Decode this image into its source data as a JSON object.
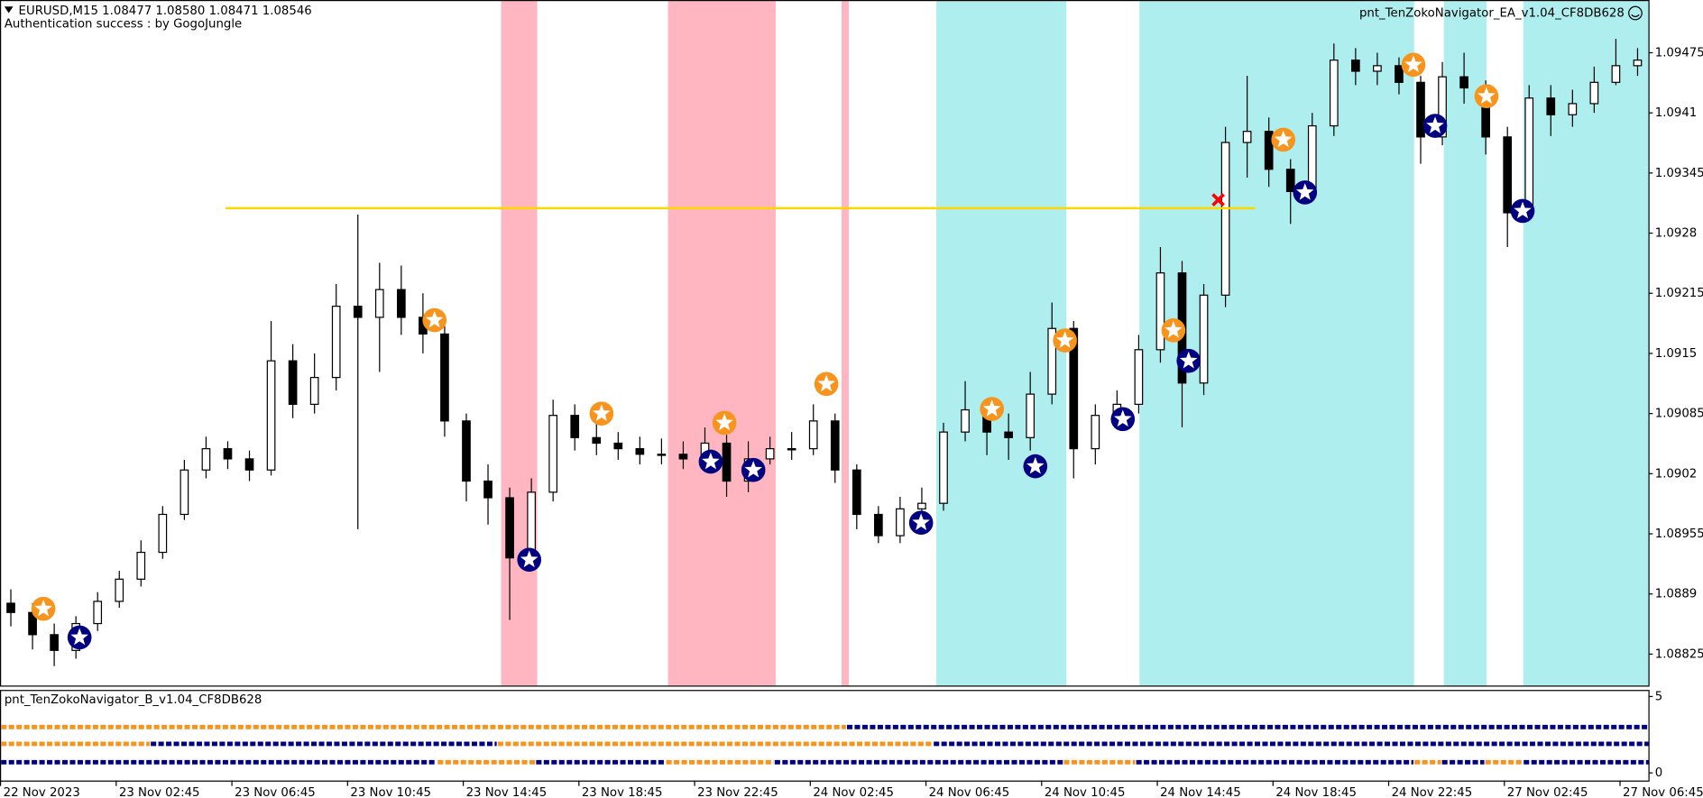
{
  "chart_data": [
    {
      "type": "candlestick",
      "title": "EURUSD,M15  1.08477 1.08580 1.08471 1.08546",
      "subtitle": "Authentication success : by GogoJungle",
      "annotation": "pnt_TenZokoNavigator_EA_v1.04_CF8DB628",
      "x": [
        1.5,
        4.5,
        7.5,
        10.5,
        13.5,
        16.5,
        19.5,
        22.5,
        25.5,
        28.5,
        31.5,
        34.5,
        37.5,
        40.5,
        43.5,
        46.5,
        49.5,
        52.5,
        55.5,
        58.5,
        61.5,
        64.5,
        67.5,
        70.5,
        73.5,
        76.5,
        79.5,
        82.5,
        85.5,
        88.5,
        91.5,
        94.5,
        97.5,
        100.5,
        103.5,
        106.5,
        109.5,
        112.5,
        115.5,
        118.5,
        121.5,
        124.5,
        127.5,
        130.5,
        133.5,
        136.5,
        139.5,
        142.5,
        145.5,
        148.5,
        151.5,
        154.5,
        157.5,
        160.5,
        163.5,
        166.5,
        169.5,
        172.5,
        175.5,
        178.5,
        181.5,
        184.5,
        187.5,
        190.5,
        193.5,
        196.5,
        199.5,
        202.5,
        205.5,
        208.5,
        211.5,
        214.5,
        217.5,
        220.5,
        223.5,
        226.5
      ],
      "open": [
        1.0888,
        1.0887,
        1.08846,
        1.08829,
        1.08858,
        1.08882,
        1.08906,
        1.08935,
        1.08976,
        1.09024,
        1.09047,
        1.09036,
        1.09024,
        1.09142,
        1.09095,
        1.09124,
        1.09201,
        1.09189,
        1.09219,
        1.09189,
        1.09171,
        1.09077,
        1.09012,
        1.08994,
        1.08929,
        1.09,
        1.09083,
        1.09059,
        1.09053,
        1.09047,
        1.09041,
        1.09041,
        1.09036,
        1.09053,
        1.09012,
        1.09036,
        1.09047,
        1.09047,
        1.09077,
        1.09024,
        1.08976,
        1.08953,
        1.08982,
        1.08988,
        1.09065,
        1.09089,
        1.09065,
        1.09059,
        1.09106,
        1.09177,
        1.09047,
        1.09083,
        1.09095,
        1.09154,
        1.09237,
        1.09118,
        1.09213,
        1.09378,
        1.0939,
        1.09349,
        1.09325,
        1.09396,
        1.09467,
        1.09455,
        1.09461,
        1.09443,
        1.09384,
        1.09449,
        1.09437,
        1.09384,
        1.09302,
        1.09426,
        1.09408,
        1.0942,
        1.09443,
        1.09461
      ],
      "high": [
        1.08895,
        1.0888,
        1.08858,
        1.08866,
        1.08892,
        1.08915,
        1.08948,
        1.08985,
        1.09035,
        1.0906,
        1.09055,
        1.09045,
        1.09185,
        1.0916,
        1.0915,
        1.09225,
        1.093,
        1.09248,
        1.09245,
        1.09215,
        1.0918,
        1.09085,
        1.0903,
        1.09005,
        1.09015,
        1.091,
        1.09095,
        1.09075,
        1.09065,
        1.0906,
        1.09058,
        1.09055,
        1.0907,
        1.09062,
        1.09055,
        1.0906,
        1.09065,
        1.09095,
        1.09085,
        1.0903,
        1.08985,
        1.08995,
        1.09005,
        1.09075,
        1.0912,
        1.091,
        1.09085,
        1.0913,
        1.09205,
        1.09185,
        1.09095,
        1.0911,
        1.0917,
        1.09265,
        1.0925,
        1.09225,
        1.09395,
        1.0945,
        1.09405,
        1.0936,
        1.0941,
        1.09485,
        1.0948,
        1.09475,
        1.0947,
        1.0945,
        1.09465,
        1.09475,
        1.09445,
        1.09395,
        1.0944,
        1.0944,
        1.09435,
        1.0946,
        1.0949,
        1.0948
      ],
      "low": [
        1.08855,
        1.0883,
        1.08812,
        1.0882,
        1.0885,
        1.08875,
        1.08898,
        1.08928,
        1.0897,
        1.09015,
        1.09025,
        1.09012,
        1.09018,
        1.0908,
        1.09085,
        1.0911,
        1.0896,
        1.0913,
        1.0917,
        1.0915,
        1.0906,
        1.0899,
        1.08965,
        1.08862,
        1.08915,
        1.0899,
        1.09045,
        1.0904,
        1.09035,
        1.0903,
        1.0903,
        1.09025,
        1.09028,
        1.08995,
        1.09,
        1.0903,
        1.09035,
        1.0904,
        1.0901,
        1.0896,
        1.08945,
        1.08945,
        1.0897,
        1.0898,
        1.09055,
        1.0904,
        1.09035,
        1.09045,
        1.09095,
        1.09015,
        1.0903,
        1.0907,
        1.09085,
        1.0914,
        1.0907,
        1.09105,
        1.092,
        1.0934,
        1.0933,
        1.0929,
        1.09315,
        1.09385,
        1.0944,
        1.0944,
        1.0943,
        1.09355,
        1.09375,
        1.0942,
        1.09365,
        1.09265,
        1.09295,
        1.09385,
        1.09395,
        1.0941,
        1.0944,
        1.0945
      ],
      "close": [
        1.0887,
        1.08846,
        1.08829,
        1.08858,
        1.08882,
        1.08906,
        1.08935,
        1.08976,
        1.09024,
        1.09047,
        1.09036,
        1.09024,
        1.09142,
        1.09095,
        1.09124,
        1.09201,
        1.09189,
        1.09219,
        1.09189,
        1.09171,
        1.09077,
        1.09012,
        1.08994,
        1.08929,
        1.09,
        1.09083,
        1.09059,
        1.09053,
        1.09047,
        1.09041,
        1.09041,
        1.09036,
        1.09053,
        1.09012,
        1.09036,
        1.09047,
        1.09047,
        1.09077,
        1.09024,
        1.08976,
        1.08953,
        1.08982,
        1.08988,
        1.09065,
        1.09089,
        1.09065,
        1.09059,
        1.09106,
        1.09177,
        1.09047,
        1.09083,
        1.09095,
        1.09154,
        1.09237,
        1.09118,
        1.09213,
        1.09378,
        1.0939,
        1.09349,
        1.09325,
        1.09396,
        1.09467,
        1.09455,
        1.09461,
        1.09443,
        1.09384,
        1.09449,
        1.09437,
        1.09384,
        1.09302,
        1.09426,
        1.09408,
        1.0942,
        1.09443,
        1.09461,
        1.09467
      ],
      "xlim": [
        0,
        228
      ],
      "ylim": [
        1.08791,
        1.09532
      ],
      "yticks": [
        1.08825,
        1.0889,
        1.08955,
        1.0902,
        1.09085,
        1.0915,
        1.09215,
        1.0928,
        1.09345,
        1.0941,
        1.09475
      ],
      "xticks": [
        {
          "value": 0,
          "label": "22 Nov 2023"
        },
        {
          "value": 16,
          "label": "23 Nov 02:45"
        },
        {
          "value": 32,
          "label": "23 Nov 06:45"
        },
        {
          "value": 48,
          "label": "23 Nov 10:45"
        },
        {
          "value": 64,
          "label": "23 Nov 14:45"
        },
        {
          "value": 80,
          "label": "23 Nov 18:45"
        },
        {
          "value": 96,
          "label": "23 Nov 22:45"
        },
        {
          "value": 112,
          "label": "24 Nov 02:45"
        },
        {
          "value": 128,
          "label": "24 Nov 06:45"
        },
        {
          "value": 144,
          "label": "24 Nov 10:45"
        },
        {
          "value": 160,
          "label": "24 Nov 14:45"
        },
        {
          "value": 176,
          "label": "24 Nov 18:45"
        },
        {
          "value": 192,
          "label": "24 Nov 22:45"
        },
        {
          "value": 208,
          "label": "27 Nov 02:45"
        },
        {
          "value": 224,
          "label": "27 Nov 06:45"
        }
      ],
      "zones": [
        {
          "start": 69.3,
          "end": 74.3,
          "color": "#ffb6c1"
        },
        {
          "start": 92.4,
          "end": 107.3,
          "color": "#ffb6c1"
        },
        {
          "start": 116.4,
          "end": 117.4,
          "color": "#ffb6c1"
        },
        {
          "start": 129.5,
          "end": 147.5,
          "color": "#afeeee"
        },
        {
          "start": 157.6,
          "end": 195.6,
          "color": "#afeeee"
        },
        {
          "start": 199.7,
          "end": 205.6,
          "color": "#afeeee"
        },
        {
          "start": 210.7,
          "end": 228,
          "color": "#afeeee"
        }
      ],
      "level_line": {
        "y": 1.09307,
        "x_range": [
          31.2,
          173.6
        ],
        "color": "#ffd700"
      },
      "exit_mark": {
        "x": 168.5,
        "y": 1.09316,
        "color": "#ff0000"
      },
      "markers": [
        {
          "color": "#f7941d",
          "x": [
            6.0,
            60.1,
            83.2,
            100.2,
            114.3,
            137.2,
            147.3,
            162.3,
            177.5,
            195.5,
            205.6
          ],
          "y": [
            1.08874,
            1.09186,
            1.09085,
            1.09075,
            1.09117,
            1.0909,
            1.09164,
            1.09175,
            1.09381,
            1.09462,
            1.09428
          ]
        },
        {
          "color": "#000080",
          "x": [
            11.0,
            73.2,
            98.3,
            104.2,
            127.4,
            143.2,
            155.3,
            164.4,
            180.5,
            198.5,
            210.6
          ],
          "y": [
            1.08843,
            1.08927,
            1.09033,
            1.09024,
            1.08967,
            1.09028,
            1.09079,
            1.09142,
            1.09324,
            1.09396,
            1.09304
          ]
        }
      ]
    },
    {
      "type": "strip",
      "title": "pnt_TenZokoNavigator_B_v1.04_CF8DB628",
      "xlim": [
        0,
        228
      ],
      "ylim": [
        -0.5,
        5.43
      ],
      "yticks": [
        0,
        5
      ],
      "rows": [
        {
          "level": 3,
          "segments": [
            {
              "start": 0,
              "end": 117,
              "color": "#f7941d"
            },
            {
              "start": 117,
              "end": 228,
              "color": "#000080"
            }
          ]
        },
        {
          "level": 1.9,
          "segments": [
            {
              "start": 0,
              "end": 20.7,
              "color": "#f7941d"
            },
            {
              "start": 20.7,
              "end": 68.7,
              "color": "#000080"
            },
            {
              "start": 68.7,
              "end": 129,
              "color": "#f7941d"
            },
            {
              "start": 129,
              "end": 228,
              "color": "#000080"
            }
          ]
        },
        {
          "level": 0.7,
          "segments": [
            {
              "start": 0,
              "end": 60.4,
              "color": "#000080"
            },
            {
              "start": 60.4,
              "end": 74,
              "color": "#f7941d"
            },
            {
              "start": 74,
              "end": 92,
              "color": "#000080"
            },
            {
              "start": 92,
              "end": 107,
              "color": "#f7941d"
            },
            {
              "start": 107,
              "end": 147,
              "color": "#000080"
            },
            {
              "start": 147,
              "end": 157,
              "color": "#f7941d"
            },
            {
              "start": 157,
              "end": 195.5,
              "color": "#000080"
            },
            {
              "start": 195.5,
              "end": 199.3,
              "color": "#f7941d"
            },
            {
              "start": 199.3,
              "end": 205.3,
              "color": "#000080"
            },
            {
              "start": 205.3,
              "end": 210.6,
              "color": "#f7941d"
            },
            {
              "start": 210.6,
              "end": 228,
              "color": "#000080"
            }
          ]
        }
      ]
    }
  ]
}
